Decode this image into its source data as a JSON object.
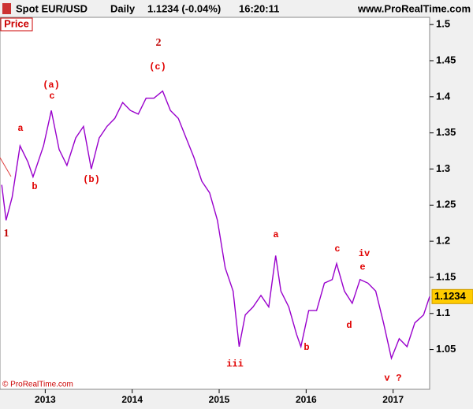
{
  "chart_data": {
    "type": "line",
    "instrument": "Spot EUR/USD",
    "timeframe": "Daily",
    "quote": "1.1234 (-0.04%)",
    "time": "16:20:11",
    "website": "www.ProRealTime.com",
    "panel_label": "Price",
    "copyright": "© ProRealTime.com",
    "last_price": 1.1234,
    "color": "#9900cc",
    "x": [
      2012.5,
      2012.55,
      2012.62,
      2012.71,
      2012.8,
      2012.86,
      2012.98,
      2013.07,
      2013.16,
      2013.25,
      2013.35,
      2013.44,
      2013.53,
      2013.62,
      2013.71,
      2013.8,
      2013.89,
      2013.98,
      2014.07,
      2014.16,
      2014.25,
      2014.35,
      2014.44,
      2014.53,
      2014.62,
      2014.71,
      2014.8,
      2014.89,
      2014.98,
      2015.07,
      2015.16,
      2015.23,
      2015.3,
      2015.39,
      2015.48,
      2015.57,
      2015.65,
      2015.71,
      2015.8,
      2015.89,
      2015.94,
      2016.03,
      2016.12,
      2016.21,
      2016.3,
      2016.35,
      2016.44,
      2016.53,
      2016.62,
      2016.71,
      2016.8,
      2016.89,
      2016.98,
      2017.07,
      2017.16,
      2017.25,
      2017.35,
      2017.42
    ],
    "values": [
      1.278,
      1.229,
      1.261,
      1.332,
      1.31,
      1.289,
      1.332,
      1.381,
      1.327,
      1.305,
      1.343,
      1.359,
      1.3,
      1.343,
      1.359,
      1.37,
      1.392,
      1.381,
      1.376,
      1.398,
      1.398,
      1.408,
      1.381,
      1.37,
      1.343,
      1.316,
      1.283,
      1.267,
      1.229,
      1.163,
      1.131,
      1.054,
      1.098,
      1.109,
      1.125,
      1.109,
      1.18,
      1.131,
      1.109,
      1.071,
      1.054,
      1.104,
      1.104,
      1.142,
      1.147,
      1.169,
      1.131,
      1.114,
      1.147,
      1.142,
      1.131,
      1.087,
      1.038,
      1.065,
      1.054,
      1.087,
      1.098,
      1.1234
    ],
    "xlim": [
      2012.48,
      2017.42
    ],
    "xticks": [
      2013,
      2014,
      2015,
      2016,
      2017
    ],
    "ylim": [
      0.995,
      1.51
    ],
    "yticks": [
      1.05,
      1.1,
      1.15,
      1.2,
      1.25,
      1.3,
      1.35,
      1.4,
      1.45,
      1.5
    ],
    "annotations": [
      "1",
      "a",
      "b",
      "(a)",
      "c",
      "(b)",
      "2",
      "(c)",
      "iii",
      "a",
      "b",
      "c",
      "iv",
      "e",
      "d",
      "v",
      "?"
    ]
  }
}
